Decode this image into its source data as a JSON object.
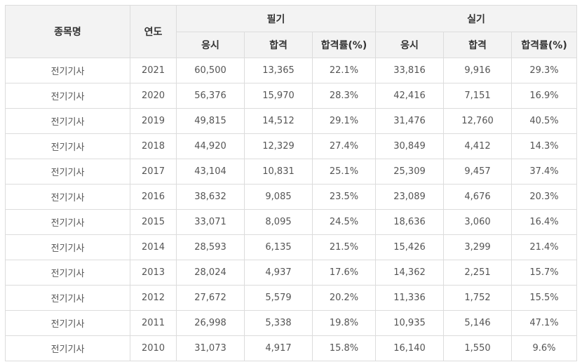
{
  "table": {
    "headers": {
      "name": "종목명",
      "year": "연도",
      "written": "필기",
      "practical": "실기",
      "apply": "응시",
      "pass": "합격",
      "rate": "합격률(%)"
    },
    "rows": [
      {
        "name": "전기기사",
        "year": "2021",
        "w_apply": "60,500",
        "w_pass": "13,365",
        "w_rate": "22.1%",
        "p_apply": "33,816",
        "p_pass": "9,916",
        "p_rate": "29.3%"
      },
      {
        "name": "전기기사",
        "year": "2020",
        "w_apply": "56,376",
        "w_pass": "15,970",
        "w_rate": "28.3%",
        "p_apply": "42,416",
        "p_pass": "7,151",
        "p_rate": "16.9%"
      },
      {
        "name": "전기기사",
        "year": "2019",
        "w_apply": "49,815",
        "w_pass": "14,512",
        "w_rate": "29.1%",
        "p_apply": "31,476",
        "p_pass": "12,760",
        "p_rate": "40.5%"
      },
      {
        "name": "전기기사",
        "year": "2018",
        "w_apply": "44,920",
        "w_pass": "12,329",
        "w_rate": "27.4%",
        "p_apply": "30,849",
        "p_pass": "4,412",
        "p_rate": "14.3%"
      },
      {
        "name": "전기기사",
        "year": "2017",
        "w_apply": "43,104",
        "w_pass": "10,831",
        "w_rate": "25.1%",
        "p_apply": "25,309",
        "p_pass": "9,457",
        "p_rate": "37.4%"
      },
      {
        "name": "전기기사",
        "year": "2016",
        "w_apply": "38,632",
        "w_pass": "9,085",
        "w_rate": "23.5%",
        "p_apply": "23,089",
        "p_pass": "4,676",
        "p_rate": "20.3%"
      },
      {
        "name": "전기기사",
        "year": "2015",
        "w_apply": "33,071",
        "w_pass": "8,095",
        "w_rate": "24.5%",
        "p_apply": "18,636",
        "p_pass": "3,060",
        "p_rate": "16.4%"
      },
      {
        "name": "전기기사",
        "year": "2014",
        "w_apply": "28,593",
        "w_pass": "6,135",
        "w_rate": "21.5%",
        "p_apply": "15,426",
        "p_pass": "3,299",
        "p_rate": "21.4%"
      },
      {
        "name": "전기기사",
        "year": "2013",
        "w_apply": "28,024",
        "w_pass": "4,937",
        "w_rate": "17.6%",
        "p_apply": "14,362",
        "p_pass": "2,251",
        "p_rate": "15.7%"
      },
      {
        "name": "전기기사",
        "year": "2012",
        "w_apply": "27,672",
        "w_pass": "5,579",
        "w_rate": "20.2%",
        "p_apply": "11,336",
        "p_pass": "1,752",
        "p_rate": "15.5%"
      },
      {
        "name": "전기기사",
        "year": "2011",
        "w_apply": "26,998",
        "w_pass": "5,338",
        "w_rate": "19.8%",
        "p_apply": "10,935",
        "p_pass": "5,146",
        "p_rate": "47.1%"
      },
      {
        "name": "전기기사",
        "year": "2010",
        "w_apply": "31,073",
        "w_pass": "4,917",
        "w_rate": "15.8%",
        "p_apply": "16,140",
        "p_pass": "1,550",
        "p_rate": "9.6%"
      }
    ]
  }
}
